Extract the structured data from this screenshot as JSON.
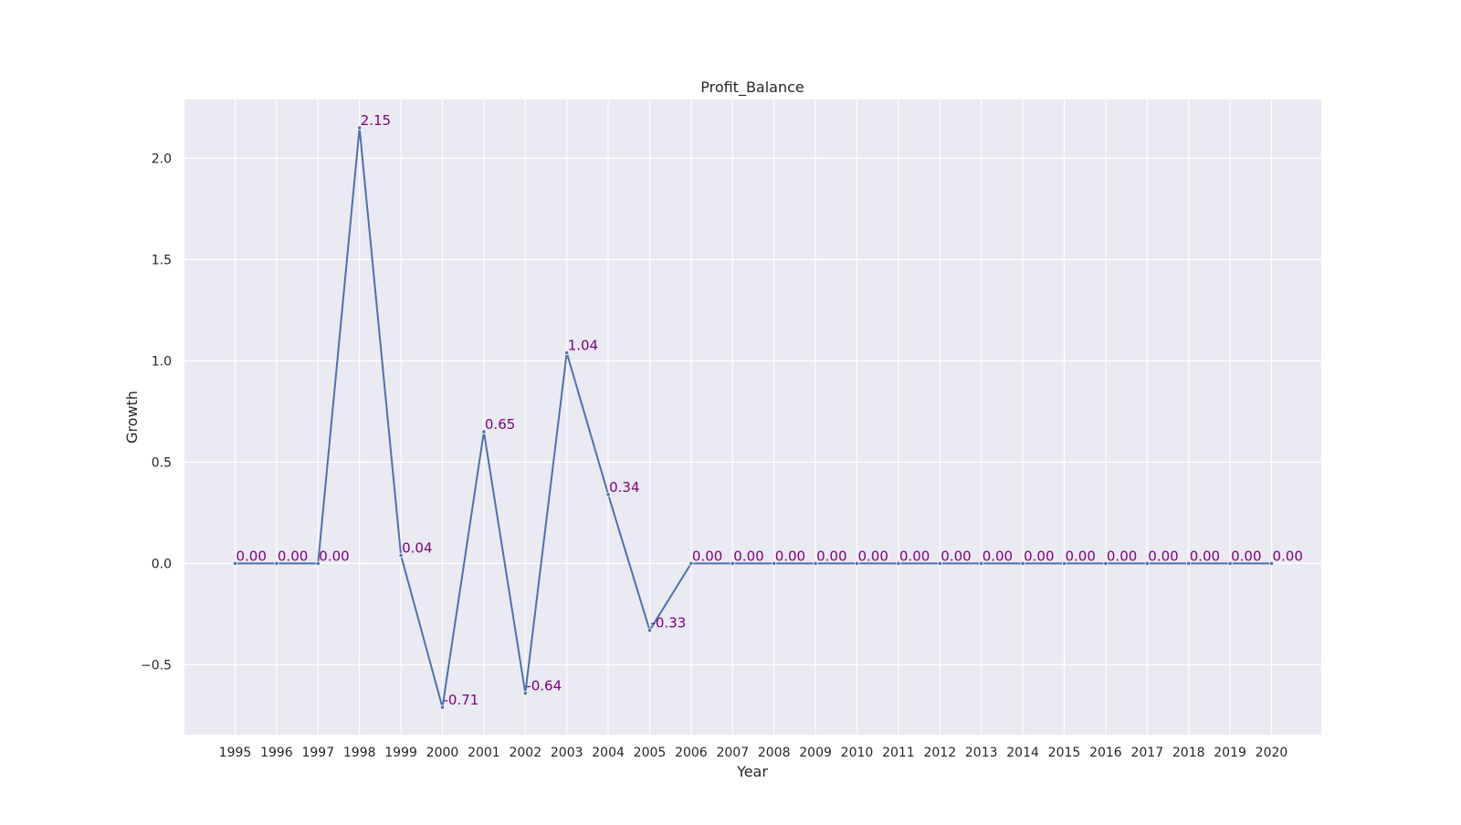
{
  "chart_data": {
    "type": "line",
    "title": "Profit_Balance",
    "xlabel": "Year",
    "ylabel": "Growth",
    "x": [
      "1995",
      "1996",
      "1997",
      "1998",
      "1999",
      "2000",
      "2001",
      "2002",
      "2003",
      "2004",
      "2005",
      "2006",
      "2007",
      "2008",
      "2009",
      "2010",
      "2011",
      "2012",
      "2013",
      "2014",
      "2015",
      "2016",
      "2017",
      "2018",
      "2019",
      "2020"
    ],
    "series": [
      {
        "values": [
          0.0,
          0.0,
          0.0,
          2.15,
          0.04,
          -0.71,
          0.65,
          -0.64,
          1.04,
          0.34,
          -0.33,
          0.0,
          0.0,
          0.0,
          0.0,
          0.0,
          0.0,
          0.0,
          0.0,
          0.0,
          0.0,
          0.0,
          0.0,
          0.0,
          0.0,
          0.0
        ],
        "labels": [
          "0.00",
          "0.00",
          "0.00",
          "2.15",
          "0.04",
          "-0.71",
          "0.65",
          "-0.64",
          "1.04",
          "0.34",
          "-0.33",
          "0.00",
          "0.00",
          "0.00",
          "0.00",
          "0.00",
          "0.00",
          "0.00",
          "0.00",
          "0.00",
          "0.00",
          "0.00",
          "0.00",
          "0.00",
          "0.00",
          "0.00"
        ]
      }
    ],
    "yticks": [
      -0.5,
      0.0,
      0.5,
      1.0,
      1.5,
      2.0
    ],
    "ytick_labels": [
      "−0.5",
      "0.0",
      "0.5",
      "1.0",
      "1.5",
      "2.0"
    ],
    "ylim": [
      -0.845,
      2.29
    ],
    "grid": true,
    "colors": {
      "background": "#eaeaf2",
      "grid": "#ffffff",
      "line": "#4c72b0",
      "data_label": "#800080"
    }
  }
}
